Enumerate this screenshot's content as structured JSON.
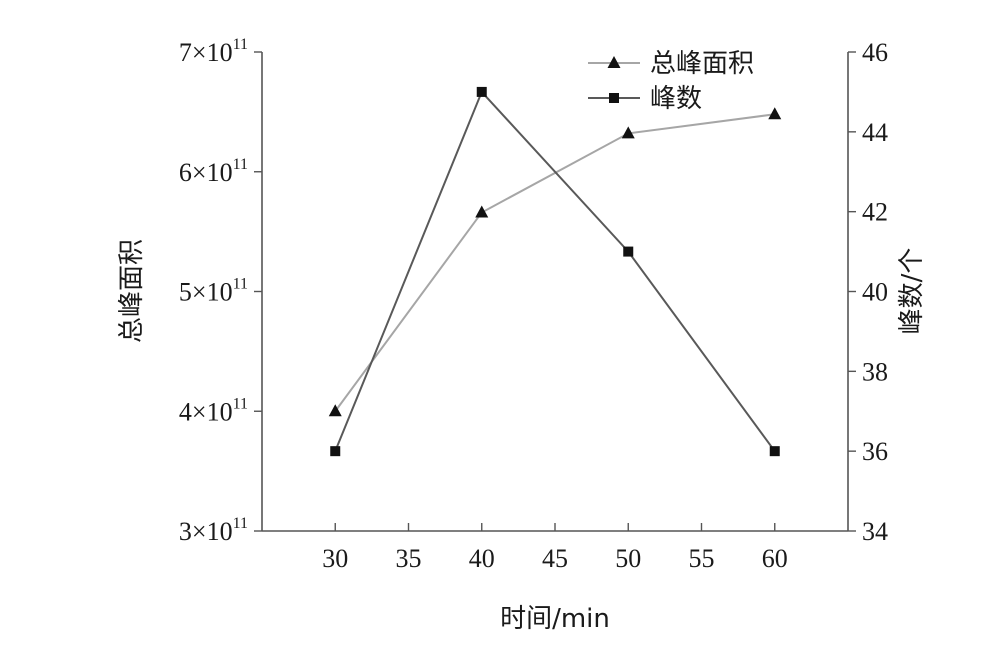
{
  "chart_data": {
    "type": "line",
    "x": [
      30,
      40,
      50,
      60
    ],
    "xlabel": "时间/min",
    "ylabel_left": "总峰面积",
    "ylabel_right": "峰数/个",
    "xlim": [
      25,
      65
    ],
    "ylim_left": [
      300000000000,
      700000000000
    ],
    "ylim_right": [
      34,
      46
    ],
    "x_ticks": [
      30,
      35,
      40,
      45,
      50,
      55,
      60
    ],
    "y_left_ticks": [
      {
        "value": 300000000000,
        "mantissa": "3×10",
        "exp": "11"
      },
      {
        "value": 400000000000,
        "mantissa": "4×10",
        "exp": "11"
      },
      {
        "value": 500000000000,
        "mantissa": "5×10",
        "exp": "11"
      },
      {
        "value": 600000000000,
        "mantissa": "6×10",
        "exp": "11"
      },
      {
        "value": 700000000000,
        "mantissa": "7×10",
        "exp": "11"
      }
    ],
    "y_right_ticks": [
      34,
      36,
      38,
      40,
      42,
      44,
      46
    ],
    "grid": false,
    "legend_position": "top-right",
    "series": [
      {
        "name": "总峰面积",
        "axis": "left",
        "marker": "triangle",
        "color": "#a6a6a6",
        "values": [
          400000000000,
          566000000000,
          632000000000,
          648000000000
        ]
      },
      {
        "name": "峰数",
        "axis": "right",
        "marker": "square",
        "color": "#595959",
        "values": [
          36,
          45,
          41,
          36
        ]
      }
    ]
  }
}
